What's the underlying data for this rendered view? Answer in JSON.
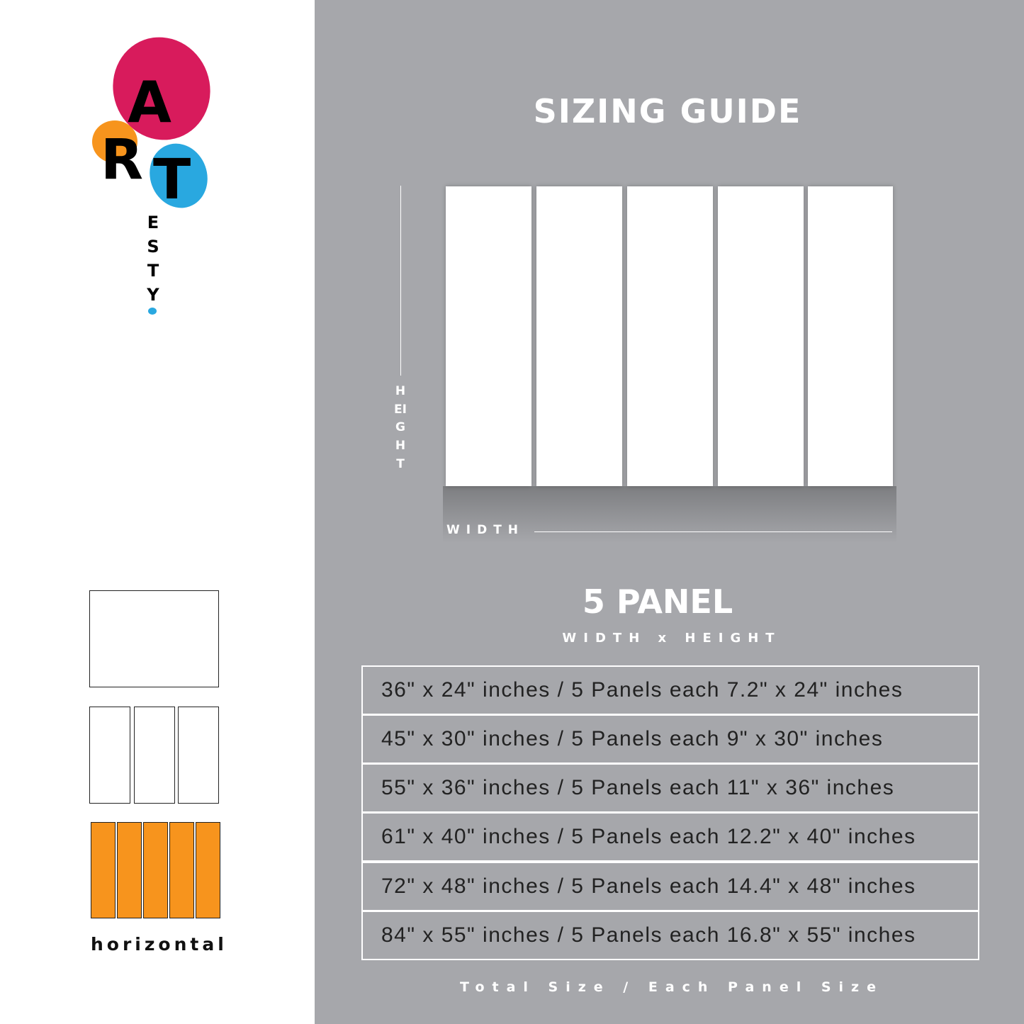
{
  "logo": {
    "letters": [
      "A",
      "R",
      "T"
    ],
    "sub": "ESTY",
    "colors": [
      "#d81b5c",
      "#f7941d",
      "#29a8e0"
    ]
  },
  "title": "SIZING GUIDE",
  "diagram": {
    "height_label": "HEIGHT",
    "width_label": "WIDTH"
  },
  "panel_title": "5 PANEL",
  "panel_subtitle": "WIDTH x HEIGHT",
  "rows": [
    "36\" x 24\" inches / 5 Panels each 7.2\" x 24\" inches",
    "45\" x 30\" inches / 5 Panels each 9\" x 30\" inches",
    "55\" x 36\" inches / 5 Panels each 11\" x 36\" inches",
    "61\" x 40\" inches / 5 Panels each 12.2\" x 40\" inches",
    "72\" x 48\" inches / 5 Panels each 14.4\" x 48\" inches",
    "84\" x 55\" inches / 5 Panels each 16.8\" x 55\" inches"
  ],
  "footer": "Total Size / Each Panel Size",
  "layout_label": "horizontal",
  "colors": {
    "background": "#a6a7ab",
    "accent": "#f7941d"
  }
}
